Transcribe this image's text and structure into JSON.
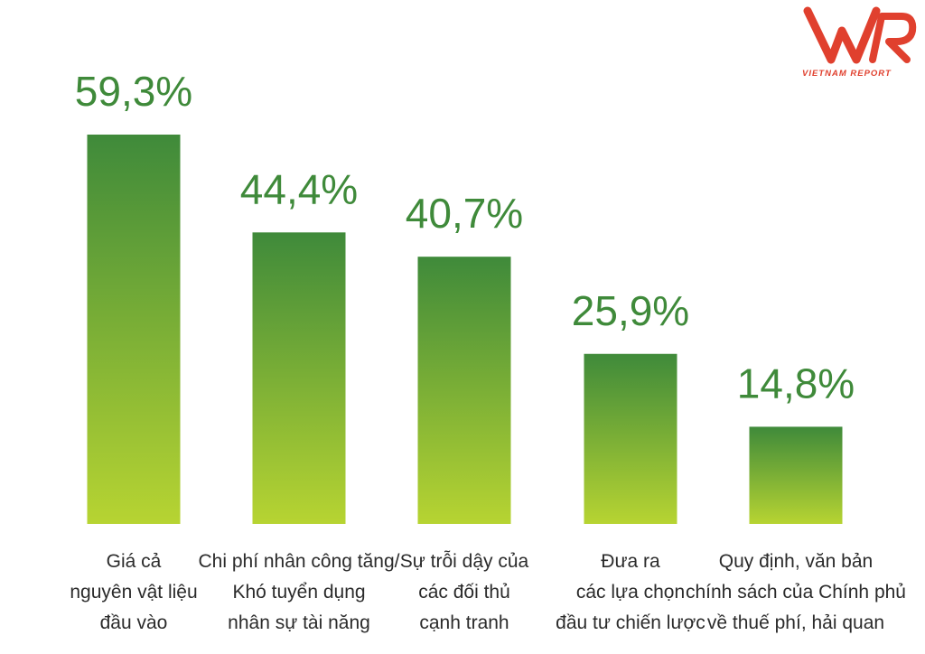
{
  "brand": {
    "logo_text": "VIETNAM REPORT",
    "color": "#e0402e"
  },
  "colors": {
    "bar_top": "#3f8a3a",
    "bar_bottom": "#b7d432",
    "value_text": "#3f8a3a",
    "label_text": "#2b2b2b"
  },
  "chart_data": {
    "type": "bar",
    "categories": [
      "Giá cả nguyên vật liệu đầu vào",
      "Chi phí nhân công tăng/ Khó tuyển dụng nhân sự tài năng",
      "Sự trỗi dậy của các đối thủ cạnh tranh",
      "Đưa ra các lựa chọn đầu tư chiến lược",
      "Quy định, văn bản chính sách của Chính phủ về thuế phí, hải quan"
    ],
    "category_lines": [
      [
        "Giá cả",
        "nguyên vật liệu",
        "đầu vào"
      ],
      [
        "Chi phí nhân công tăng/",
        "Khó tuyển dụng",
        "nhân sự tài năng"
      ],
      [
        "Sự trỗi dậy của",
        "các đối thủ",
        "cạnh tranh"
      ],
      [
        "Đưa ra",
        "các lựa chọn",
        "đầu tư chiến lược"
      ],
      [
        "Quy định, văn bản",
        "chính sách của Chính phủ",
        "về thuế phí, hải quan"
      ]
    ],
    "values": [
      59.3,
      44.4,
      40.7,
      25.9,
      14.8
    ],
    "value_labels": [
      "59,3%",
      "44,4%",
      "40,7%",
      "25,9%",
      "14,8%"
    ],
    "title": "",
    "xlabel": "",
    "ylabel": "",
    "ylim": [
      0,
      59.3
    ],
    "grid": false,
    "legend": "none"
  }
}
